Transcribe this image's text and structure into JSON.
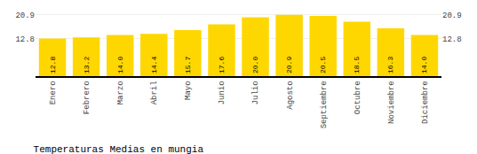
{
  "chart_data": {
    "type": "bar",
    "title": "Temperaturas Medias en mungia",
    "categories": [
      "Enero",
      "Febrero",
      "Marzo",
      "Abril",
      "Mayo",
      "Junio",
      "Julio",
      "Agosto",
      "Septiembre",
      "Octubre",
      "Noviembre",
      "Diciembre"
    ],
    "values": [
      12.8,
      13.2,
      14.0,
      14.4,
      15.7,
      17.6,
      20.0,
      20.9,
      20.5,
      18.5,
      16.3,
      14.0
    ],
    "value_labels": [
      "12.8",
      "13.2",
      "14.0",
      "14.4",
      "15.7",
      "17.6",
      "20.0",
      "20.9",
      "20.5",
      "18.5",
      "16.3",
      "14.0"
    ],
    "color": "#FFD700",
    "ylim": [
      0.0,
      23.5
    ],
    "yticks": [
      12.8,
      20.9
    ],
    "y2lim": [
      0.0,
      23.5
    ],
    "y2ticks": [
      12.8,
      20.9
    ],
    "grid": true,
    "data_labels": true
  }
}
